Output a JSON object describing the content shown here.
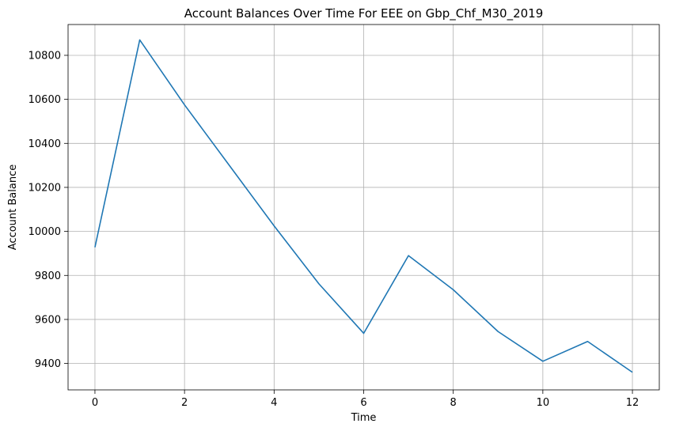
{
  "chart_data": {
    "type": "line",
    "title": "Account Balances Over Time For EEE on Gbp_Chf_M30_2019",
    "xlabel": "Time",
    "ylabel": "Account Balance",
    "xlim": [
      -0.6,
      12.6
    ],
    "ylim": [
      9280,
      10940
    ],
    "xticks": [
      0,
      2,
      4,
      6,
      8,
      10,
      12
    ],
    "yticks": [
      9400,
      9600,
      9800,
      10000,
      10200,
      10400,
      10600,
      10800
    ],
    "grid": true,
    "series": [
      {
        "color": "#1f77b4",
        "x": [
          0,
          1,
          2,
          3,
          4,
          5,
          6,
          7,
          8,
          9,
          10,
          11,
          12
        ],
        "y": [
          9928,
          10870,
          10575,
          10300,
          10025,
          9762,
          9537,
          9890,
          9735,
          9545,
          9410,
          9500,
          9360
        ]
      }
    ]
  }
}
